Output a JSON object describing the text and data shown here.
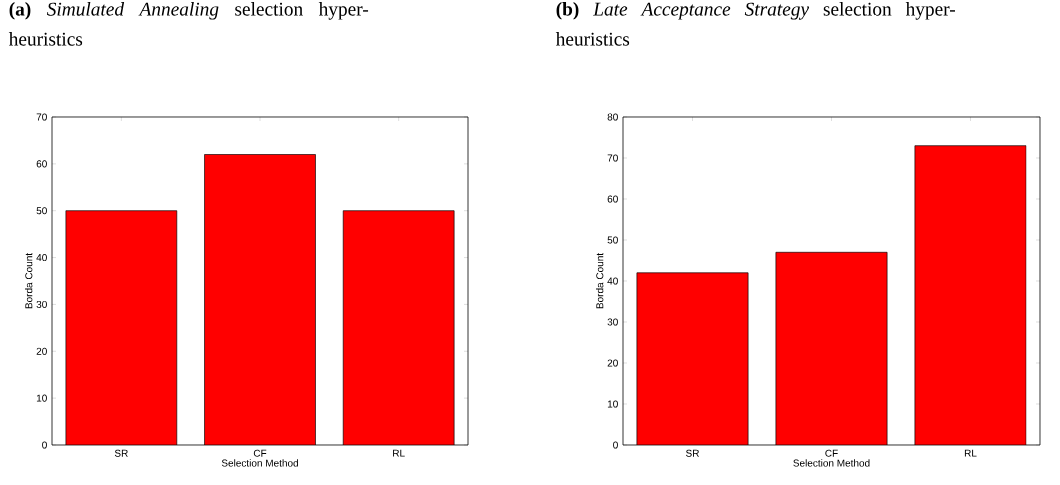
{
  "chart_data": [
    {
      "type": "bar",
      "title": "**(a)** *Simulated Annealing* selection hyper-heuristics",
      "xlabel": "Selection Method",
      "ylabel": "Borda Count",
      "categories": [
        "SR",
        "CF",
        "RL"
      ],
      "values": [
        50,
        62,
        50
      ],
      "color": "#ff0000",
      "ylim": [
        0,
        70
      ],
      "yticks": [
        0,
        10,
        20,
        30,
        40,
        50,
        60,
        70
      ]
    },
    {
      "type": "bar",
      "title": "**(b)** *Late Acceptance Strategy* selection hyper-heuristics",
      "xlabel": "Selection Method",
      "ylabel": "Borda Count",
      "categories": [
        "SR",
        "CF",
        "RL"
      ],
      "values": [
        42,
        47,
        73
      ],
      "color": "#ff0000",
      "ylim": [
        0,
        80
      ],
      "yticks": [
        0,
        10,
        20,
        30,
        40,
        50,
        60,
        70,
        80
      ]
    }
  ]
}
